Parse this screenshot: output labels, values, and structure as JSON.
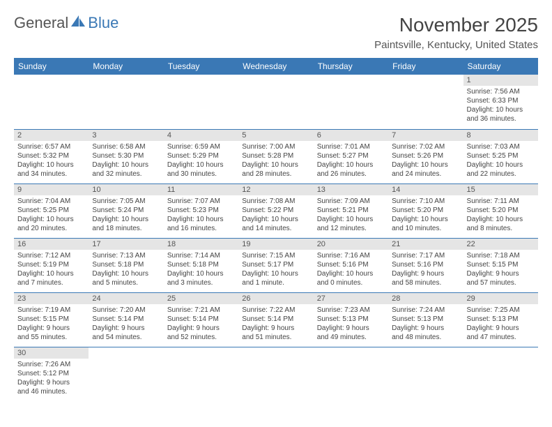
{
  "logo": {
    "text1": "General",
    "text2": "Blue"
  },
  "title": "November 2025",
  "location": "Paintsville, Kentucky, United States",
  "colors": {
    "header_bg": "#3a78b5",
    "header_text": "#ffffff",
    "daynum_bg": "#e5e5e5",
    "border": "#3a78b5",
    "text": "#444444"
  },
  "weekdays": [
    "Sunday",
    "Monday",
    "Tuesday",
    "Wednesday",
    "Thursday",
    "Friday",
    "Saturday"
  ],
  "weeks": [
    [
      null,
      null,
      null,
      null,
      null,
      null,
      {
        "n": "1",
        "sr": "Sunrise: 7:56 AM",
        "ss": "Sunset: 6:33 PM",
        "d1": "Daylight: 10 hours",
        "d2": "and 36 minutes."
      }
    ],
    [
      {
        "n": "2",
        "sr": "Sunrise: 6:57 AM",
        "ss": "Sunset: 5:32 PM",
        "d1": "Daylight: 10 hours",
        "d2": "and 34 minutes."
      },
      {
        "n": "3",
        "sr": "Sunrise: 6:58 AM",
        "ss": "Sunset: 5:30 PM",
        "d1": "Daylight: 10 hours",
        "d2": "and 32 minutes."
      },
      {
        "n": "4",
        "sr": "Sunrise: 6:59 AM",
        "ss": "Sunset: 5:29 PM",
        "d1": "Daylight: 10 hours",
        "d2": "and 30 minutes."
      },
      {
        "n": "5",
        "sr": "Sunrise: 7:00 AM",
        "ss": "Sunset: 5:28 PM",
        "d1": "Daylight: 10 hours",
        "d2": "and 28 minutes."
      },
      {
        "n": "6",
        "sr": "Sunrise: 7:01 AM",
        "ss": "Sunset: 5:27 PM",
        "d1": "Daylight: 10 hours",
        "d2": "and 26 minutes."
      },
      {
        "n": "7",
        "sr": "Sunrise: 7:02 AM",
        "ss": "Sunset: 5:26 PM",
        "d1": "Daylight: 10 hours",
        "d2": "and 24 minutes."
      },
      {
        "n": "8",
        "sr": "Sunrise: 7:03 AM",
        "ss": "Sunset: 5:25 PM",
        "d1": "Daylight: 10 hours",
        "d2": "and 22 minutes."
      }
    ],
    [
      {
        "n": "9",
        "sr": "Sunrise: 7:04 AM",
        "ss": "Sunset: 5:25 PM",
        "d1": "Daylight: 10 hours",
        "d2": "and 20 minutes."
      },
      {
        "n": "10",
        "sr": "Sunrise: 7:05 AM",
        "ss": "Sunset: 5:24 PM",
        "d1": "Daylight: 10 hours",
        "d2": "and 18 minutes."
      },
      {
        "n": "11",
        "sr": "Sunrise: 7:07 AM",
        "ss": "Sunset: 5:23 PM",
        "d1": "Daylight: 10 hours",
        "d2": "and 16 minutes."
      },
      {
        "n": "12",
        "sr": "Sunrise: 7:08 AM",
        "ss": "Sunset: 5:22 PM",
        "d1": "Daylight: 10 hours",
        "d2": "and 14 minutes."
      },
      {
        "n": "13",
        "sr": "Sunrise: 7:09 AM",
        "ss": "Sunset: 5:21 PM",
        "d1": "Daylight: 10 hours",
        "d2": "and 12 minutes."
      },
      {
        "n": "14",
        "sr": "Sunrise: 7:10 AM",
        "ss": "Sunset: 5:20 PM",
        "d1": "Daylight: 10 hours",
        "d2": "and 10 minutes."
      },
      {
        "n": "15",
        "sr": "Sunrise: 7:11 AM",
        "ss": "Sunset: 5:20 PM",
        "d1": "Daylight: 10 hours",
        "d2": "and 8 minutes."
      }
    ],
    [
      {
        "n": "16",
        "sr": "Sunrise: 7:12 AM",
        "ss": "Sunset: 5:19 PM",
        "d1": "Daylight: 10 hours",
        "d2": "and 7 minutes."
      },
      {
        "n": "17",
        "sr": "Sunrise: 7:13 AM",
        "ss": "Sunset: 5:18 PM",
        "d1": "Daylight: 10 hours",
        "d2": "and 5 minutes."
      },
      {
        "n": "18",
        "sr": "Sunrise: 7:14 AM",
        "ss": "Sunset: 5:18 PM",
        "d1": "Daylight: 10 hours",
        "d2": "and 3 minutes."
      },
      {
        "n": "19",
        "sr": "Sunrise: 7:15 AM",
        "ss": "Sunset: 5:17 PM",
        "d1": "Daylight: 10 hours",
        "d2": "and 1 minute."
      },
      {
        "n": "20",
        "sr": "Sunrise: 7:16 AM",
        "ss": "Sunset: 5:16 PM",
        "d1": "Daylight: 10 hours",
        "d2": "and 0 minutes."
      },
      {
        "n": "21",
        "sr": "Sunrise: 7:17 AM",
        "ss": "Sunset: 5:16 PM",
        "d1": "Daylight: 9 hours",
        "d2": "and 58 minutes."
      },
      {
        "n": "22",
        "sr": "Sunrise: 7:18 AM",
        "ss": "Sunset: 5:15 PM",
        "d1": "Daylight: 9 hours",
        "d2": "and 57 minutes."
      }
    ],
    [
      {
        "n": "23",
        "sr": "Sunrise: 7:19 AM",
        "ss": "Sunset: 5:15 PM",
        "d1": "Daylight: 9 hours",
        "d2": "and 55 minutes."
      },
      {
        "n": "24",
        "sr": "Sunrise: 7:20 AM",
        "ss": "Sunset: 5:14 PM",
        "d1": "Daylight: 9 hours",
        "d2": "and 54 minutes."
      },
      {
        "n": "25",
        "sr": "Sunrise: 7:21 AM",
        "ss": "Sunset: 5:14 PM",
        "d1": "Daylight: 9 hours",
        "d2": "and 52 minutes."
      },
      {
        "n": "26",
        "sr": "Sunrise: 7:22 AM",
        "ss": "Sunset: 5:14 PM",
        "d1": "Daylight: 9 hours",
        "d2": "and 51 minutes."
      },
      {
        "n": "27",
        "sr": "Sunrise: 7:23 AM",
        "ss": "Sunset: 5:13 PM",
        "d1": "Daylight: 9 hours",
        "d2": "and 49 minutes."
      },
      {
        "n": "28",
        "sr": "Sunrise: 7:24 AM",
        "ss": "Sunset: 5:13 PM",
        "d1": "Daylight: 9 hours",
        "d2": "and 48 minutes."
      },
      {
        "n": "29",
        "sr": "Sunrise: 7:25 AM",
        "ss": "Sunset: 5:13 PM",
        "d1": "Daylight: 9 hours",
        "d2": "and 47 minutes."
      }
    ],
    [
      {
        "n": "30",
        "sr": "Sunrise: 7:26 AM",
        "ss": "Sunset: 5:12 PM",
        "d1": "Daylight: 9 hours",
        "d2": "and 46 minutes."
      },
      null,
      null,
      null,
      null,
      null,
      null
    ]
  ]
}
